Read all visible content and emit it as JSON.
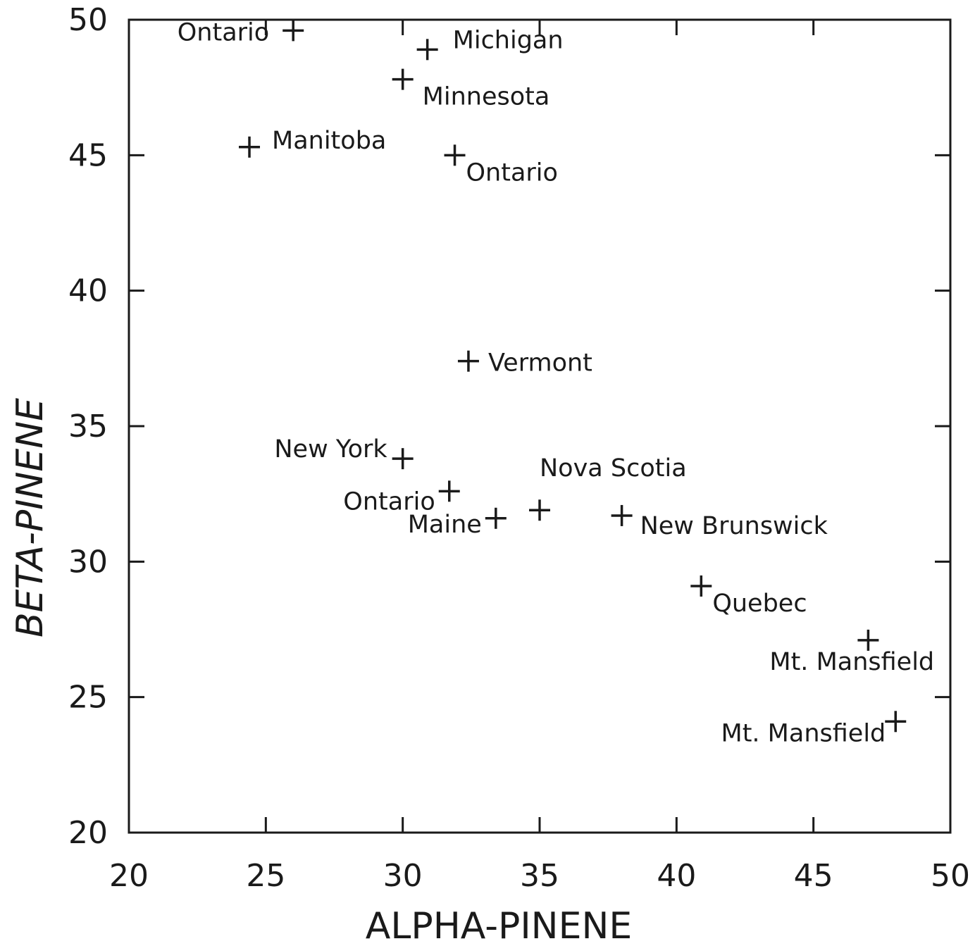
{
  "chart_data": {
    "type": "scatter",
    "title": "",
    "xlabel": "ALPHA-PINENE",
    "ylabel": "BETA-PINENE",
    "xlim": [
      20,
      50
    ],
    "ylim": [
      20,
      50
    ],
    "xticks": [
      "20",
      "25",
      "30",
      "35",
      "40",
      "45",
      "50"
    ],
    "yticks": [
      "20",
      "25",
      "30",
      "35",
      "40",
      "45",
      "50"
    ],
    "grid": false,
    "marker": "plus",
    "points": [
      {
        "label": "Ontario",
        "x": 26.0,
        "y": 49.6
      },
      {
        "label": "Michigan",
        "x": 30.9,
        "y": 48.9
      },
      {
        "label": "Minnesota",
        "x": 30.0,
        "y": 47.8
      },
      {
        "label": "Manitoba",
        "x": 24.4,
        "y": 45.3
      },
      {
        "label": "Ontario",
        "x": 31.9,
        "y": 45.0
      },
      {
        "label": "Vermont",
        "x": 32.4,
        "y": 37.4
      },
      {
        "label": "New York",
        "x": 30.0,
        "y": 33.8
      },
      {
        "label": "Ontario",
        "x": 31.7,
        "y": 32.6
      },
      {
        "label": "Maine",
        "x": 33.4,
        "y": 31.6
      },
      {
        "label": "Nova Scotia",
        "x": 35.0,
        "y": 31.9
      },
      {
        "label": "New Brunswick",
        "x": 38.0,
        "y": 31.7
      },
      {
        "label": "Quebec",
        "x": 40.9,
        "y": 29.1
      },
      {
        "label": "Mt. Mansfield",
        "x": 47.0,
        "y": 27.1
      },
      {
        "label": "Mt. Mansfield",
        "x": 48.0,
        "y": 24.1
      }
    ]
  },
  "colors": {
    "ink": "#1a1a1a",
    "background": "#ffffff"
  }
}
